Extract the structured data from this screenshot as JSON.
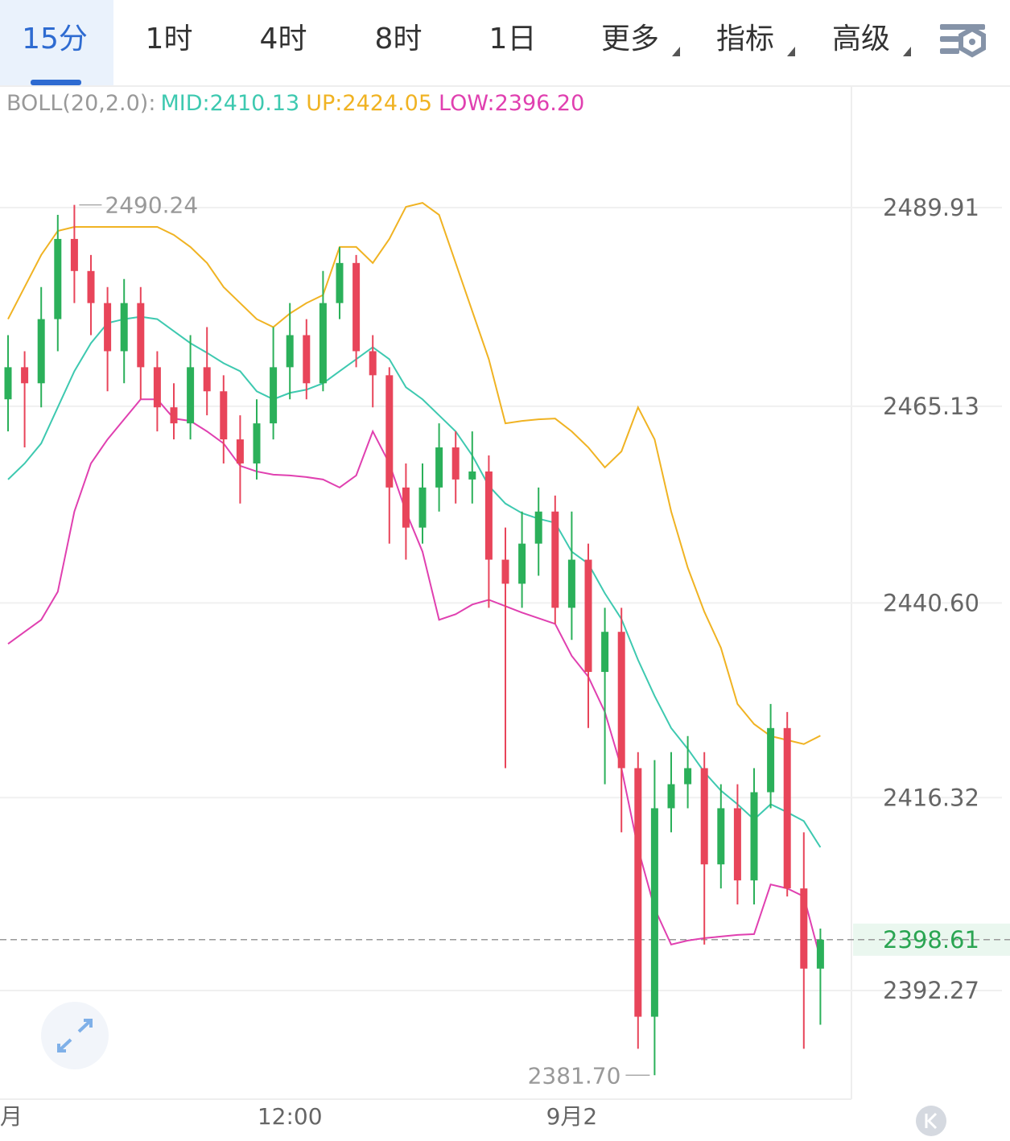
{
  "tabs": {
    "items": [
      "15分",
      "1时",
      "4时",
      "8时",
      "1日",
      "更多",
      "指标",
      "高级"
    ],
    "active": 0,
    "dropdown_from": 5
  },
  "chart_data": {
    "type": "candlestick",
    "indicator": "BOLL(20,2.0):",
    "categories": [
      "月",
      null,
      null,
      null,
      null,
      null,
      null,
      null,
      null,
      null,
      null,
      null,
      null,
      null,
      null,
      null,
      null,
      "12:00",
      null,
      null,
      null,
      null,
      null,
      null,
      null,
      null,
      null,
      null,
      null,
      null,
      null,
      null,
      null,
      null,
      "9月2",
      null,
      null,
      null,
      null,
      null,
      null,
      null,
      null,
      null,
      null,
      null,
      null,
      null,
      null,
      null
    ],
    "open": [
      2466,
      2470,
      2468,
      2476,
      2486,
      2482,
      2478,
      2472,
      2478,
      2470,
      2465,
      2463,
      2470,
      2467,
      2461,
      2458,
      2463,
      2470,
      2474,
      2468,
      2478,
      2483,
      2472,
      2469,
      2455,
      2450,
      2455,
      2460,
      2456,
      2457,
      2446,
      2443,
      2448,
      2452,
      2440,
      2446,
      2432,
      2437,
      2420,
      2389,
      2415,
      2418,
      2420,
      2408,
      2415,
      2406,
      2417,
      2425,
      2405,
      2395
    ],
    "high": [
      2474,
      2472,
      2480,
      2489,
      2490.24,
      2484,
      2480,
      2481,
      2480,
      2472,
      2468,
      2474,
      2475,
      2469,
      2464,
      2466,
      2475,
      2478,
      2476,
      2482,
      2485,
      2484,
      2474,
      2470,
      2458,
      2458,
      2463,
      2462,
      2462,
      2459,
      2450,
      2452,
      2455,
      2454,
      2452,
      2448,
      2440,
      2440,
      2422,
      2421,
      2422,
      2424,
      2422,
      2418,
      2418,
      2420,
      2428,
      2427,
      2412,
      2400
    ],
    "low": [
      2462,
      2460,
      2465,
      2472,
      2478,
      2474,
      2467,
      2468,
      2466,
      2462,
      2461,
      2461,
      2464,
      2458,
      2453,
      2456,
      2461,
      2466,
      2466,
      2467,
      2476,
      2470,
      2465,
      2448,
      2446,
      2448,
      2452,
      2453,
      2453,
      2440,
      2420,
      2440,
      2444,
      2438,
      2436,
      2425,
      2418,
      2412,
      2385,
      2381.7,
      2412,
      2415,
      2398,
      2405,
      2403,
      2403,
      2415,
      2404,
      2385,
      2388
    ],
    "close": [
      2470,
      2468,
      2476,
      2486,
      2482,
      2478,
      2472,
      2478,
      2470,
      2465,
      2463,
      2470,
      2467,
      2461,
      2458,
      2463,
      2470,
      2474,
      2468,
      2478,
      2483,
      2472,
      2469,
      2455,
      2450,
      2455,
      2460,
      2456,
      2457,
      2446,
      2443,
      2448,
      2452,
      2440,
      2446,
      2432,
      2437,
      2420,
      2389,
      2415,
      2418,
      2420,
      2408,
      2415,
      2406,
      2417,
      2425,
      2405,
      2395,
      2398.61
    ],
    "up_color": "#2bb05a",
    "down_color": "#e8455a",
    "series": [
      {
        "name": "MID",
        "legend_label": "MID:2410.13",
        "color": "#3ec9b0",
        "values": [
          2456,
          2458,
          2460.5,
          2465,
          2469.5,
          2473,
          2475.5,
          2476,
          2476.3,
          2476,
          2474.5,
          2473,
          2471.8,
          2470.5,
          2469.5,
          2467,
          2466,
          2466.8,
          2467.2,
          2468,
          2469.5,
          2471,
          2472.5,
          2471,
          2467.5,
          2466,
          2464,
          2462,
          2459,
          2455.2,
          2453,
          2451.8,
          2451.1,
          2450.6,
          2447,
          2445.5,
          2441.8,
          2438.6,
          2433.5,
          2429,
          2425,
          2422.4,
          2419.5,
          2417.2,
          2415.5,
          2413.6,
          2415.5,
          2414.5,
          2413.4,
          2410.13
        ]
      },
      {
        "name": "UP",
        "legend_label": "UP:2424.05",
        "color": "#f0b323",
        "values": [
          2476,
          2480,
          2484,
          2487,
          2487.5,
          2487.5,
          2487.5,
          2487.5,
          2487.5,
          2487.5,
          2486.5,
          2485,
          2483,
          2480,
          2478,
          2476,
          2475,
          2476.7,
          2478,
          2479,
          2485,
          2485,
          2483,
          2486,
          2490,
          2490.5,
          2489,
          2483,
          2477,
          2471,
          2463,
          2463.3,
          2463.5,
          2463.6,
          2462,
          2460,
          2457.5,
          2459.5,
          2465,
          2461,
          2452,
          2445,
          2439.5,
          2435,
          2428,
          2425.5,
          2424,
          2423.5,
          2423,
          2424.05
        ]
      },
      {
        "name": "LOW",
        "legend_label": "LOW:2396.20",
        "color": "#e040b0",
        "values": [
          2435.5,
          2437,
          2438.5,
          2442,
          2452,
          2458,
          2461,
          2463.5,
          2466,
          2466,
          2463.6,
          2463.3,
          2462,
          2460.5,
          2457.7,
          2457,
          2456.6,
          2456.5,
          2456.3,
          2456,
          2455,
          2456.5,
          2462,
          2458,
          2452,
          2447,
          2438.5,
          2439.2,
          2440.4,
          2441,
          2440.2,
          2439.4,
          2438.7,
          2438,
          2434,
          2431.4,
          2427,
          2420,
          2410,
          2402.5,
          2398,
          2398.5,
          2398.8,
          2399,
          2399.2,
          2399.3,
          2405.5,
          2405,
          2404,
          2396.2
        ]
      }
    ],
    "ylim": [
      2378.72,
      2505.06
    ],
    "yticks": [
      2489.91,
      2465.13,
      {
        "value": 2440.6,
        "label": "2440.60"
      },
      2416.32,
      2392.27
    ],
    "grid": true,
    "high_marker": {
      "value": 2490.24,
      "label": "2490.24"
    },
    "low_marker": {
      "value": 2381.7,
      "label": "2381.70"
    },
    "last_price": {
      "value": 2398.61,
      "label": "2398.61"
    }
  }
}
